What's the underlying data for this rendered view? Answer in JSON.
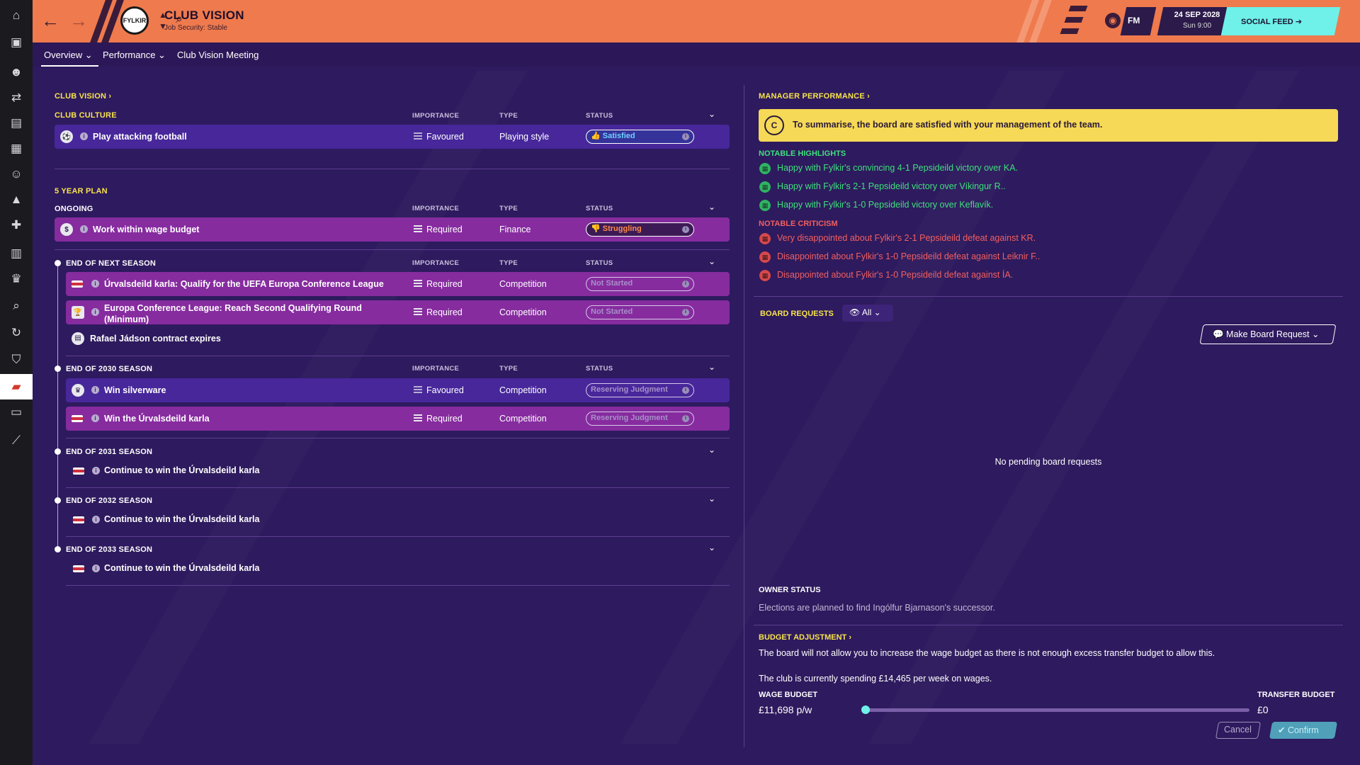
{
  "header": {
    "title": "CLUB VISION",
    "subtitle": "Job Security: Stable",
    "club_badge": "FYLKIR",
    "fm_label": "FM",
    "date": "24 SEP 2028",
    "time": "Sun 9:00",
    "social_feed": "SOCIAL FEED"
  },
  "tabs": [
    {
      "label": "Overview",
      "active": true,
      "dropdown": true
    },
    {
      "label": "Performance",
      "active": false,
      "dropdown": true
    },
    {
      "label": "Club Vision Meeting",
      "active": false,
      "dropdown": false
    }
  ],
  "sidebar_icons": [
    "home-icon",
    "inbox-icon",
    "squad-icon",
    "tactics-icon",
    "data-icon",
    "reports-icon",
    "staff-icon",
    "training-icon",
    "medical-icon",
    "schedule-icon",
    "competitions-icon",
    "scouting-icon",
    "transfers-icon",
    "club-info-icon",
    "club-vision-icon",
    "finances-icon",
    "dev-centre-icon"
  ],
  "left": {
    "club_vision_title": "CLUB VISION",
    "columns": {
      "importance": "IMPORTANCE",
      "type": "TYPE",
      "status": "STATUS"
    },
    "club_culture": {
      "title": "CLUB CULTURE",
      "rows": [
        {
          "label": "Play attacking football",
          "importance": "Favoured",
          "type": "Playing style",
          "status": "Satisfied"
        }
      ]
    },
    "five_year_title": "5 YEAR PLAN",
    "ongoing": {
      "title": "ONGOING",
      "rows": [
        {
          "label": "Work within wage budget",
          "importance": "Required",
          "type": "Finance",
          "status": "Struggling"
        }
      ]
    },
    "next_season": {
      "title": "END OF NEXT SEASON",
      "rows": [
        {
          "label": "Úrvalsdeild karla: Qualify for the UEFA Europa Conference League",
          "importance": "Required",
          "type": "Competition",
          "status": "Not Started"
        },
        {
          "label": "Europa Conference League: Reach Second Qualifying Round (Minimum)",
          "importance": "Required",
          "type": "Competition",
          "status": "Not Started"
        }
      ],
      "note": "Rafael Jádson contract expires"
    },
    "season_2030": {
      "title": "END OF 2030 SEASON",
      "rows": [
        {
          "label": "Win silverware",
          "importance": "Favoured",
          "type": "Competition",
          "status": "Reserving Judgment"
        },
        {
          "label": "Win the Úrvalsdeild karla",
          "importance": "Required",
          "type": "Competition",
          "status": "Reserving Judgment"
        }
      ]
    },
    "season_2031": {
      "title": "END OF 2031 SEASON",
      "item": "Continue to win the Úrvalsdeild karla"
    },
    "season_2032": {
      "title": "END OF 2032 SEASON",
      "item": "Continue to win the Úrvalsdeild karla"
    },
    "season_2033": {
      "title": "END OF 2033 SEASON",
      "item": "Continue to win the Úrvalsdeild karla"
    }
  },
  "right": {
    "manager_performance_title": "MANAGER PERFORMANCE",
    "summary_grade": "C",
    "summary": "To summarise, the board are satisfied with your management of the team.",
    "highlights_title": "NOTABLE HIGHLIGHTS",
    "highlights": [
      "Happy with Fylkir's convincing 4-1 Pepsideild victory over KA.",
      "Happy with Fylkir's 2-1 Pepsideild victory over Víkingur R..",
      "Happy with Fylkir's 1-0 Pepsideild victory over Keflavík."
    ],
    "criticism_title": "NOTABLE CRITICISM",
    "criticism": [
      "Very disappointed about Fylkir's 2-1 Pepsideild defeat against KR.",
      "Disappointed about Fylkir's 1-0 Pepsideild defeat against Leiknir F..",
      "Disappointed about Fylkir's 1-0 Pepsideild defeat against ÍA."
    ],
    "board_requests_title": "BOARD REQUESTS",
    "filter_label": "All",
    "make_request_label": "Make Board Request",
    "no_pending": "No pending board requests",
    "owner_status_title": "OWNER STATUS",
    "owner_status_text": "Elections are planned to find Ingólfur Bjarnason's successor.",
    "budget_title": "BUDGET ADJUSTMENT",
    "budget_text_1": "The board will not allow you to increase the wage budget as there is not enough excess transfer budget to allow this.",
    "budget_text_2": "The club is currently spending £14,465 per week on wages.",
    "wage_budget_label": "WAGE BUDGET",
    "wage_budget_value": "£11,698 p/w",
    "transfer_budget_label": "TRANSFER BUDGET",
    "transfer_budget_value": "£0",
    "slider_fraction": 0.0,
    "cancel_label": "Cancel",
    "confirm_label": "Confirm"
  },
  "colors": {
    "topbar": "#ef7a4d",
    "background": "#2e1a5e",
    "accent_yellow": "#f6e44a",
    "good": "#3ee07c",
    "bad": "#f25f5f",
    "social_feed": "#6ff0e8"
  }
}
